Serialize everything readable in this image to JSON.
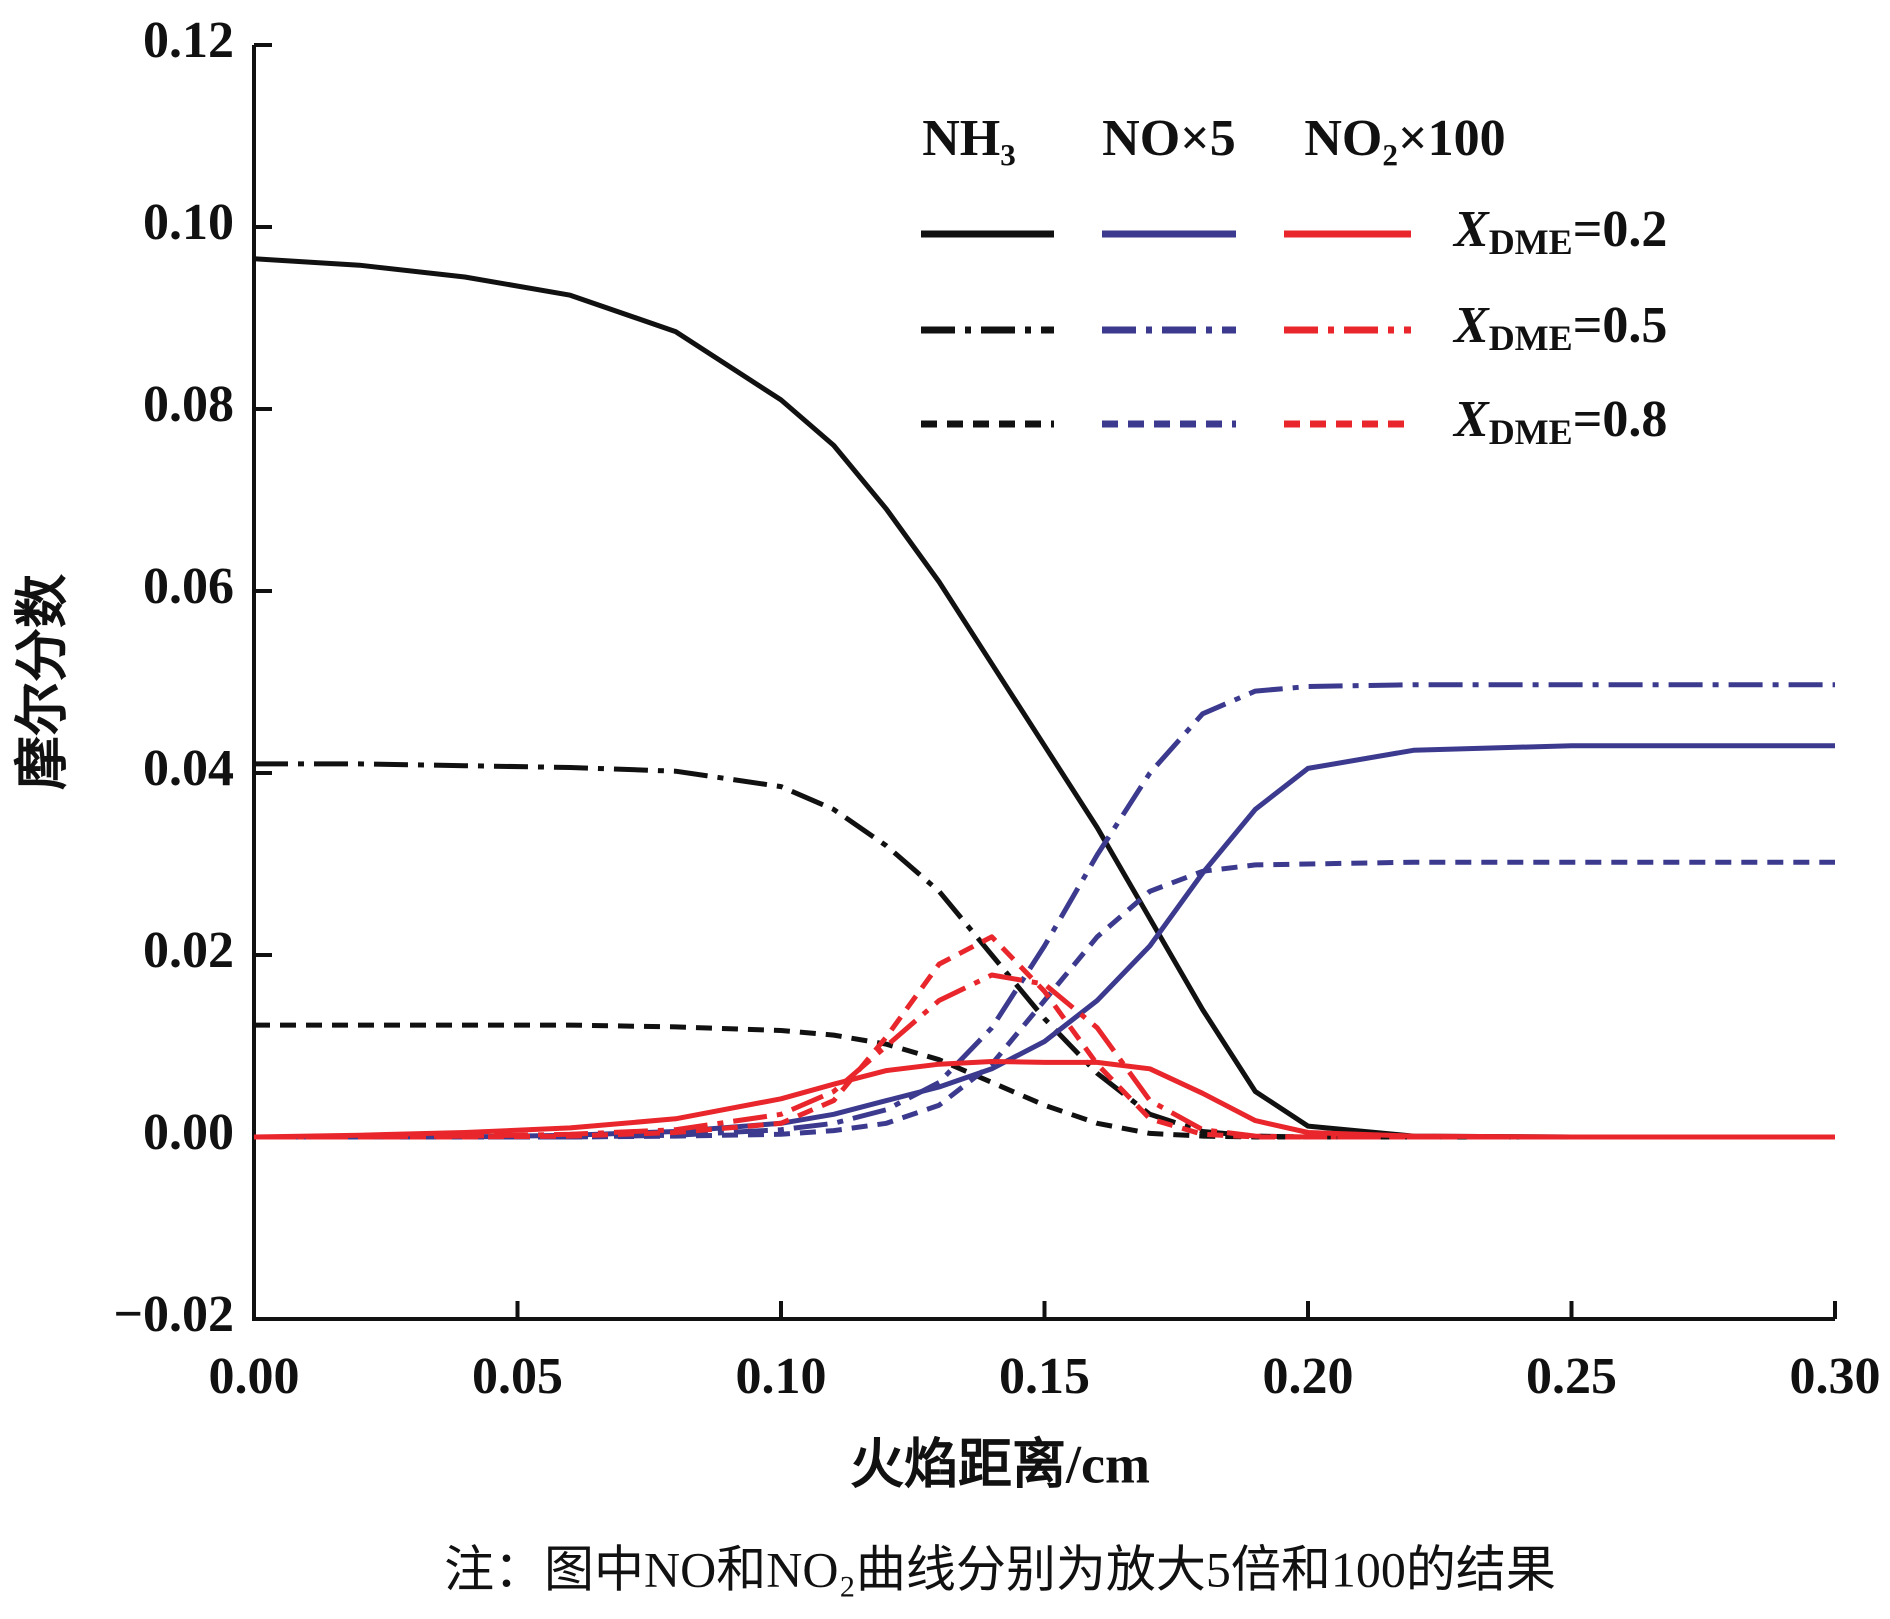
{
  "chart_data": {
    "type": "line",
    "x_label": "火焰距离/cm",
    "y_label": "摩尔分数",
    "note": "注：图中NO和NO₂曲线分别为放大5倍和100的结果",
    "xlim": [
      0,
      0.3
    ],
    "ylim": [
      -0.02,
      0.12
    ],
    "xticks": [
      {
        "value": 0,
        "label": "0.00"
      },
      {
        "value": 0.05,
        "label": "0.05"
      },
      {
        "value": 0.1,
        "label": "0.10"
      },
      {
        "value": 0.15,
        "label": "0.15"
      },
      {
        "value": 0.2,
        "label": "0.20"
      },
      {
        "value": 0.25,
        "label": "0.25"
      },
      {
        "value": 0.3,
        "label": "0.30"
      }
    ],
    "yticks": [
      {
        "value": -0.02,
        "label": "−0.02"
      },
      {
        "value": 0,
        "label": "0.00"
      },
      {
        "value": 0.02,
        "label": "0.02"
      },
      {
        "value": 0.04,
        "label": "0.04"
      },
      {
        "value": 0.06,
        "label": "0.06"
      },
      {
        "value": 0.08,
        "label": "0.08"
      },
      {
        "value": 0.1,
        "label": "0.10"
      },
      {
        "value": 0.12,
        "label": "0.12"
      }
    ],
    "grid": false,
    "legend": {
      "columns": [
        "NH₃",
        "NO×5",
        "NO₂×100"
      ],
      "rows": [
        {
          "symbol": "X",
          "subscript": "DME",
          "text": "=0.2"
        },
        {
          "symbol": "X",
          "subscript": "DME",
          "text": "=0.5"
        },
        {
          "symbol": "X",
          "subscript": "DME",
          "text": "=0.8"
        }
      ]
    },
    "x": [
      0,
      0.02,
      0.04,
      0.06,
      0.08,
      0.1,
      0.11,
      0.12,
      0.13,
      0.14,
      0.15,
      0.16,
      0.17,
      0.18,
      0.19,
      0.2,
      0.22,
      0.25,
      0.3
    ],
    "series": [
      {
        "column": 0,
        "row": 0,
        "color": "#111111",
        "dash": "solid",
        "values": [
          0.0965,
          0.0958,
          0.0945,
          0.0925,
          0.0885,
          0.081,
          0.076,
          0.069,
          0.061,
          0.052,
          0.043,
          0.034,
          0.024,
          0.014,
          0.005,
          0.0012,
          0.0001,
          0,
          0
        ]
      },
      {
        "column": 0,
        "row": 1,
        "color": "#111111",
        "dash": "dash-dot",
        "values": [
          0.041,
          0.041,
          0.0408,
          0.0406,
          0.0402,
          0.0385,
          0.036,
          0.032,
          0.027,
          0.02,
          0.013,
          0.007,
          0.0025,
          0.0006,
          0.0001,
          0,
          0,
          0,
          0
        ]
      },
      {
        "column": 0,
        "row": 2,
        "color": "#111111",
        "dash": "dashed",
        "values": [
          0.0123,
          0.0123,
          0.0123,
          0.0123,
          0.0121,
          0.0117,
          0.0112,
          0.0102,
          0.0085,
          0.006,
          0.0035,
          0.0015,
          0.0004,
          0.0001,
          0,
          0,
          0,
          0,
          0
        ]
      },
      {
        "column": 1,
        "row": 0,
        "color": "#3b3a8e",
        "dash": "solid",
        "values": [
          0,
          0,
          0,
          0.0002,
          0.0006,
          0.0015,
          0.0025,
          0.004,
          0.0055,
          0.0075,
          0.0105,
          0.015,
          0.021,
          0.029,
          0.036,
          0.0405,
          0.0425,
          0.043,
          0.043
        ]
      },
      {
        "column": 1,
        "row": 1,
        "color": "#3b3a8e",
        "dash": "dash-dot",
        "values": [
          0,
          0,
          0,
          0,
          0.0002,
          0.0008,
          0.0015,
          0.003,
          0.006,
          0.012,
          0.021,
          0.031,
          0.04,
          0.0465,
          0.049,
          0.0495,
          0.0497,
          0.0497,
          0.0497
        ]
      },
      {
        "column": 1,
        "row": 2,
        "color": "#3b3a8e",
        "dash": "dashed",
        "values": [
          0,
          0,
          0,
          0,
          0.0001,
          0.0003,
          0.0007,
          0.0015,
          0.0035,
          0.008,
          0.015,
          0.022,
          0.027,
          0.0292,
          0.0299,
          0.03,
          0.0302,
          0.0302,
          0.0302
        ]
      },
      {
        "column": 2,
        "row": 0,
        "color": "#e8262b",
        "dash": "solid",
        "values": [
          0,
          0.0002,
          0.0005,
          0.001,
          0.002,
          0.0042,
          0.0058,
          0.0073,
          0.008,
          0.0083,
          0.0082,
          0.0082,
          0.0075,
          0.0048,
          0.0018,
          0.0005,
          0.0001,
          0,
          0
        ]
      },
      {
        "column": 2,
        "row": 1,
        "color": "#e8262b",
        "dash": "dash-dot",
        "values": [
          0,
          0,
          0.0001,
          0.0003,
          0.0008,
          0.0025,
          0.005,
          0.01,
          0.015,
          0.0178,
          0.0168,
          0.012,
          0.004,
          0.0008,
          0.0001,
          0,
          0,
          0,
          0
        ]
      },
      {
        "column": 2,
        "row": 2,
        "color": "#e8262b",
        "dash": "dashed",
        "values": [
          0,
          0,
          0,
          0.0001,
          0.0005,
          0.0015,
          0.004,
          0.011,
          0.019,
          0.022,
          0.016,
          0.008,
          0.002,
          0.0003,
          0,
          0,
          0,
          0,
          0
        ]
      }
    ]
  }
}
